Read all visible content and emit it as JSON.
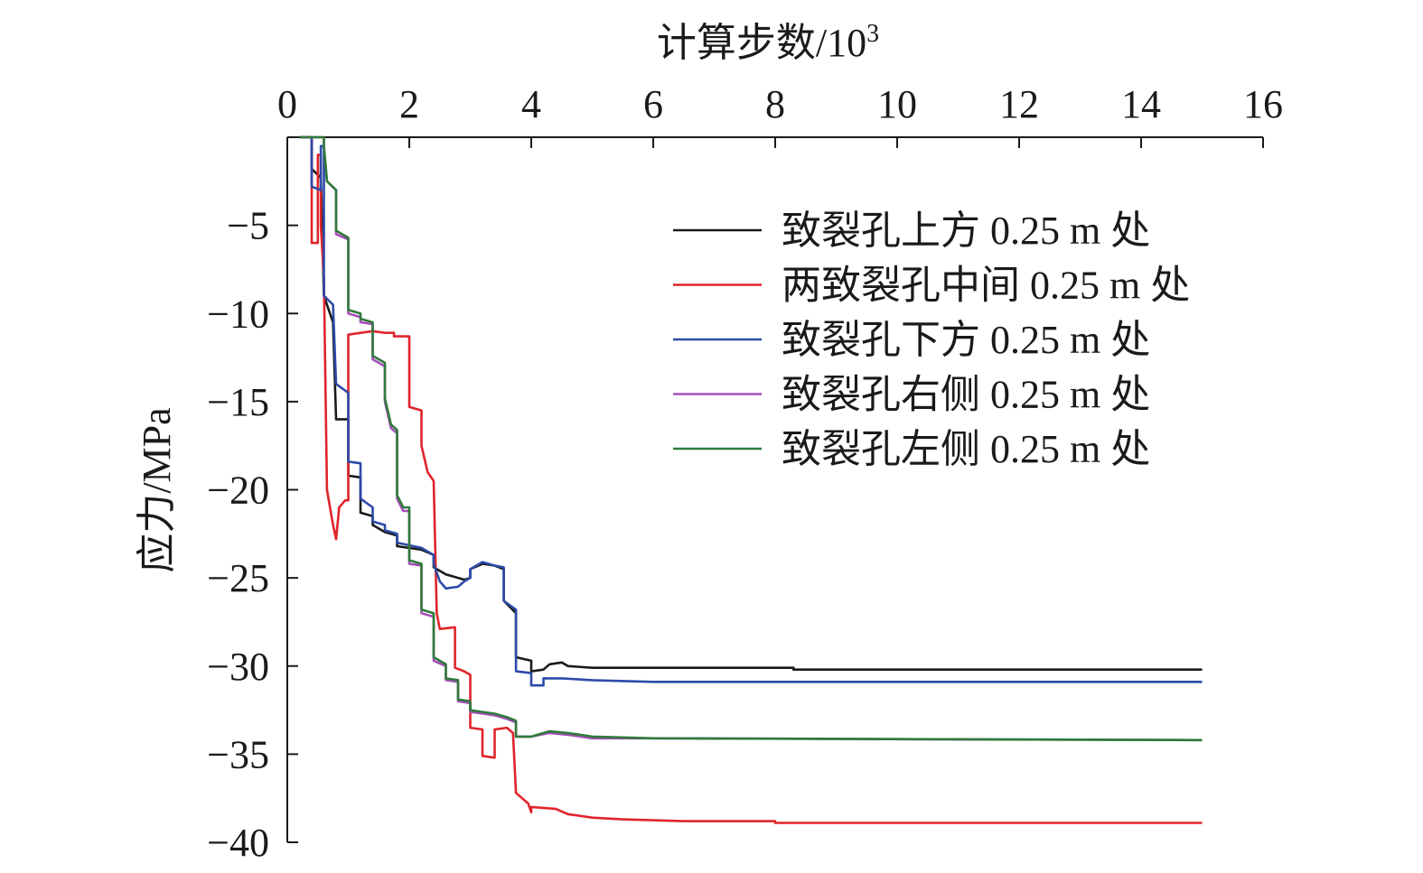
{
  "chart_data": {
    "type": "line",
    "xlabel": "计算步数/10",
    "xlabel_sup": "3",
    "ylabel": "应力/MPa",
    "xlim": [
      0,
      16
    ],
    "ylim": [
      -40,
      0
    ],
    "xaxis_position": "top",
    "grid": false,
    "legend_position": "top-right",
    "xticks": [
      {
        "value": 0,
        "label": "0"
      },
      {
        "value": 2,
        "label": "2"
      },
      {
        "value": 4,
        "label": "4"
      },
      {
        "value": 6,
        "label": "6"
      },
      {
        "value": 8,
        "label": "8"
      },
      {
        "value": 10,
        "label": "10"
      },
      {
        "value": 12,
        "label": "12"
      },
      {
        "value": 14,
        "label": "14"
      },
      {
        "value": 16,
        "label": "16"
      }
    ],
    "yticks": [
      {
        "value": -5,
        "label": "−5"
      },
      {
        "value": -10,
        "label": "−10"
      },
      {
        "value": -15,
        "label": "−15"
      },
      {
        "value": -20,
        "label": "−20"
      },
      {
        "value": -25,
        "label": "−25"
      },
      {
        "value": -30,
        "label": "−30"
      },
      {
        "value": -35,
        "label": "−35"
      },
      {
        "value": -40,
        "label": "−40"
      }
    ],
    "series": [
      {
        "name": "致裂孔上方 0.25 m 处",
        "color": "#1a1a1a",
        "points": [
          [
            0.2,
            0
          ],
          [
            0.4,
            0
          ],
          [
            0.4,
            -1.8
          ],
          [
            0.55,
            -2.3
          ],
          [
            0.6,
            -9
          ],
          [
            0.75,
            -10.5
          ],
          [
            0.8,
            -16
          ],
          [
            1.0,
            -16
          ],
          [
            1.0,
            -19.2
          ],
          [
            1.2,
            -19.3
          ],
          [
            1.2,
            -21.3
          ],
          [
            1.4,
            -21.5
          ],
          [
            1.4,
            -22
          ],
          [
            1.6,
            -22.4
          ],
          [
            1.8,
            -22.6
          ],
          [
            1.8,
            -23.2
          ],
          [
            2.2,
            -23.4
          ],
          [
            2.4,
            -23.7
          ],
          [
            2.4,
            -24.4
          ],
          [
            2.6,
            -24.8
          ],
          [
            2.9,
            -25.1
          ],
          [
            3.0,
            -25
          ],
          [
            3.0,
            -24.5
          ],
          [
            3.2,
            -24.2
          ],
          [
            3.4,
            -24.3
          ],
          [
            3.55,
            -24.5
          ],
          [
            3.55,
            -26.3
          ],
          [
            3.75,
            -27
          ],
          [
            3.75,
            -29.5
          ],
          [
            4.0,
            -29.7
          ],
          [
            4.0,
            -30.3
          ],
          [
            4.2,
            -30.2
          ],
          [
            4.3,
            -29.9
          ],
          [
            4.5,
            -29.8
          ],
          [
            4.6,
            -30.0
          ],
          [
            5.0,
            -30.1
          ],
          [
            6.0,
            -30.1
          ],
          [
            8.3,
            -30.1
          ],
          [
            8.3,
            -30.2
          ],
          [
            15.0,
            -30.2
          ]
        ]
      },
      {
        "name": "两致裂孔中间 0.25 m 处",
        "color": "#e0242b",
        "points": [
          [
            0.2,
            0
          ],
          [
            0.4,
            0
          ],
          [
            0.4,
            -6
          ],
          [
            0.5,
            -6
          ],
          [
            0.5,
            -1
          ],
          [
            0.55,
            -1
          ],
          [
            0.55,
            -5
          ],
          [
            0.6,
            -8
          ],
          [
            0.65,
            -20
          ],
          [
            0.75,
            -22
          ],
          [
            0.8,
            -22.8
          ],
          [
            0.85,
            -21
          ],
          [
            0.95,
            -20.6
          ],
          [
            1.0,
            -20.6
          ],
          [
            1.0,
            -11.2
          ],
          [
            1.2,
            -11.1
          ],
          [
            1.4,
            -11
          ],
          [
            1.6,
            -11.1
          ],
          [
            1.75,
            -11.1
          ],
          [
            1.75,
            -11.3
          ],
          [
            2.0,
            -11.3
          ],
          [
            2.0,
            -15.3
          ],
          [
            2.2,
            -15.5
          ],
          [
            2.2,
            -17.5
          ],
          [
            2.3,
            -19
          ],
          [
            2.4,
            -19.5
          ],
          [
            2.45,
            -27
          ],
          [
            2.5,
            -27.9
          ],
          [
            2.75,
            -27.8
          ],
          [
            2.75,
            -30.1
          ],
          [
            2.9,
            -30.3
          ],
          [
            3.0,
            -30.5
          ],
          [
            3.0,
            -33.5
          ],
          [
            3.2,
            -33.6
          ],
          [
            3.2,
            -35.1
          ],
          [
            3.4,
            -35.2
          ],
          [
            3.4,
            -33.6
          ],
          [
            3.6,
            -33.5
          ],
          [
            3.7,
            -33.8
          ],
          [
            3.75,
            -37.2
          ],
          [
            3.95,
            -37.8
          ],
          [
            4.0,
            -38.3
          ],
          [
            4.0,
            -38
          ],
          [
            4.4,
            -38.1
          ],
          [
            4.6,
            -38.4
          ],
          [
            5.0,
            -38.6
          ],
          [
            5.5,
            -38.7
          ],
          [
            6.5,
            -38.8
          ],
          [
            8.0,
            -38.8
          ],
          [
            8.0,
            -38.9
          ],
          [
            15.0,
            -38.9
          ]
        ]
      },
      {
        "name": "致裂孔下方 0.25 m 处",
        "color": "#2c4aa8",
        "points": [
          [
            0.2,
            0
          ],
          [
            0.4,
            0
          ],
          [
            0.4,
            -2.8
          ],
          [
            0.55,
            -3
          ],
          [
            0.55,
            -0.5
          ],
          [
            0.6,
            -0.5
          ],
          [
            0.6,
            -9
          ],
          [
            0.75,
            -9.5
          ],
          [
            0.8,
            -14
          ],
          [
            1.0,
            -14.5
          ],
          [
            1.0,
            -18.4
          ],
          [
            1.2,
            -18.5
          ],
          [
            1.2,
            -20.5
          ],
          [
            1.4,
            -21
          ],
          [
            1.4,
            -21.8
          ],
          [
            1.6,
            -22
          ],
          [
            1.6,
            -22.3
          ],
          [
            1.8,
            -22.5
          ],
          [
            1.8,
            -23
          ],
          [
            2.2,
            -23.3
          ],
          [
            2.4,
            -23.7
          ],
          [
            2.4,
            -24.2
          ],
          [
            2.5,
            -25.2
          ],
          [
            2.6,
            -25.6
          ],
          [
            2.8,
            -25.5
          ],
          [
            2.9,
            -25.2
          ],
          [
            3.0,
            -25
          ],
          [
            3.0,
            -24.5
          ],
          [
            3.2,
            -24.1
          ],
          [
            3.4,
            -24.3
          ],
          [
            3.55,
            -24.4
          ],
          [
            3.55,
            -26.3
          ],
          [
            3.75,
            -26.8
          ],
          [
            3.75,
            -30.3
          ],
          [
            4.0,
            -30.4
          ],
          [
            4.0,
            -31.1
          ],
          [
            4.2,
            -31.1
          ],
          [
            4.2,
            -30.7
          ],
          [
            4.5,
            -30.7
          ],
          [
            5.0,
            -30.8
          ],
          [
            6.0,
            -30.9
          ],
          [
            15.0,
            -30.9
          ]
        ]
      },
      {
        "name": "致裂孔右侧 0.25 m 处",
        "color": "#a44fb8",
        "points": [
          [
            0.2,
            0
          ],
          [
            0.6,
            0
          ],
          [
            0.6,
            -0.5
          ],
          [
            0.65,
            -2.5
          ],
          [
            0.8,
            -3
          ],
          [
            0.8,
            -5.5
          ],
          [
            1.0,
            -5.8
          ],
          [
            1.0,
            -10
          ],
          [
            1.2,
            -10.2
          ],
          [
            1.2,
            -10.5
          ],
          [
            1.4,
            -10.6
          ],
          [
            1.4,
            -12.6
          ],
          [
            1.6,
            -13
          ],
          [
            1.6,
            -15
          ],
          [
            1.7,
            -16.5
          ],
          [
            1.8,
            -16.8
          ],
          [
            1.8,
            -20.5
          ],
          [
            1.9,
            -21.2
          ],
          [
            2.0,
            -21.2
          ],
          [
            2.0,
            -24.2
          ],
          [
            2.2,
            -24.3
          ],
          [
            2.2,
            -27
          ],
          [
            2.4,
            -27.2
          ],
          [
            2.4,
            -29.7
          ],
          [
            2.6,
            -30
          ],
          [
            2.6,
            -30.8
          ],
          [
            2.8,
            -30.9
          ],
          [
            2.8,
            -32
          ],
          [
            3.0,
            -32.1
          ],
          [
            3.0,
            -32.6
          ],
          [
            3.4,
            -32.8
          ],
          [
            3.6,
            -33
          ],
          [
            3.75,
            -33.2
          ],
          [
            3.75,
            -34
          ],
          [
            4.0,
            -34
          ],
          [
            4.3,
            -33.8
          ],
          [
            4.6,
            -33.9
          ],
          [
            5.0,
            -34.1
          ],
          [
            6.0,
            -34.1
          ],
          [
            15.0,
            -34.2
          ]
        ]
      },
      {
        "name": "致裂孔左侧 0.25 m 处",
        "color": "#2f7a3a",
        "points": [
          [
            0.2,
            0
          ],
          [
            0.6,
            0
          ],
          [
            0.6,
            -0.5
          ],
          [
            0.65,
            -2.5
          ],
          [
            0.8,
            -3
          ],
          [
            0.8,
            -5.3
          ],
          [
            1.0,
            -5.7
          ],
          [
            1.0,
            -9.8
          ],
          [
            1.2,
            -10
          ],
          [
            1.2,
            -10.3
          ],
          [
            1.4,
            -10.5
          ],
          [
            1.4,
            -12.4
          ],
          [
            1.6,
            -12.8
          ],
          [
            1.6,
            -14.8
          ],
          [
            1.7,
            -16.3
          ],
          [
            1.8,
            -16.6
          ],
          [
            1.8,
            -20.3
          ],
          [
            1.9,
            -21
          ],
          [
            2.0,
            -21
          ],
          [
            2.0,
            -24
          ],
          [
            2.2,
            -24.2
          ],
          [
            2.2,
            -26.8
          ],
          [
            2.4,
            -27
          ],
          [
            2.4,
            -29.5
          ],
          [
            2.6,
            -29.9
          ],
          [
            2.6,
            -30.7
          ],
          [
            2.8,
            -30.8
          ],
          [
            2.8,
            -31.9
          ],
          [
            3.0,
            -32
          ],
          [
            3.0,
            -32.5
          ],
          [
            3.4,
            -32.7
          ],
          [
            3.6,
            -32.9
          ],
          [
            3.75,
            -33.1
          ],
          [
            3.75,
            -34
          ],
          [
            4.0,
            -34
          ],
          [
            4.3,
            -33.7
          ],
          [
            4.6,
            -33.8
          ],
          [
            5.0,
            -34
          ],
          [
            6.0,
            -34.1
          ],
          [
            15.0,
            -34.2
          ]
        ]
      }
    ]
  }
}
